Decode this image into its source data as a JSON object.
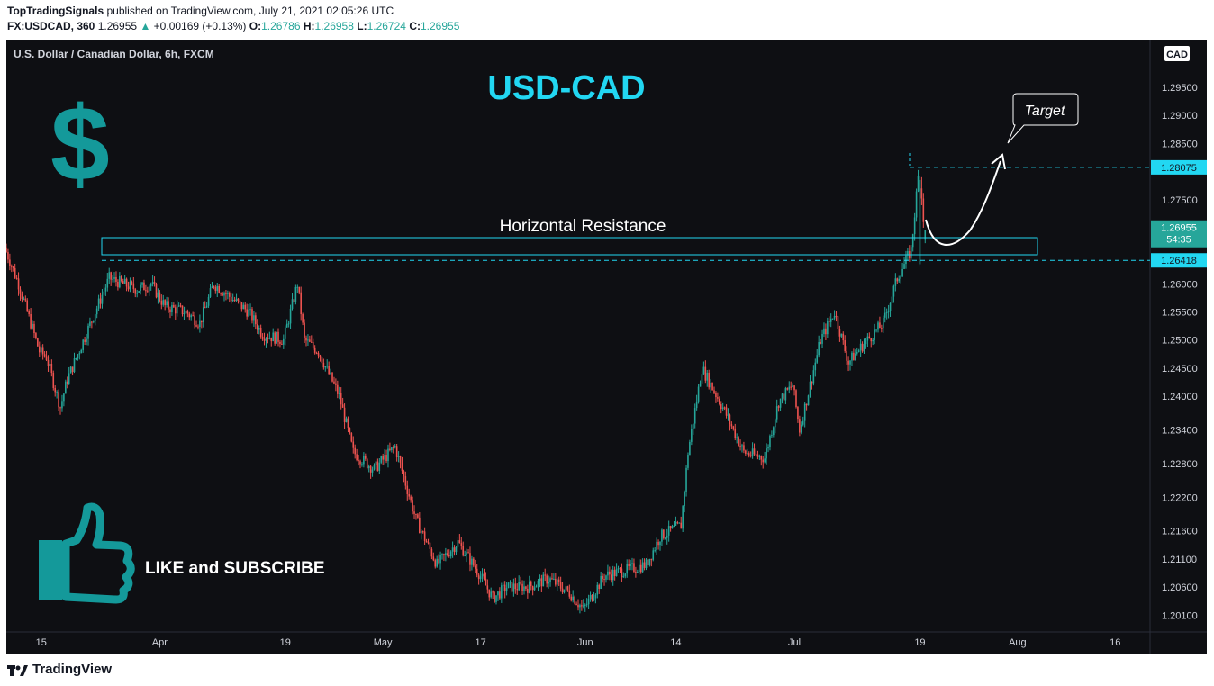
{
  "header": {
    "author": "TopTradingSignals",
    "published_text": "published on TradingView.com, July 21, 2021 02:05:26 UTC",
    "symbol": "FX:USDCAD, 360",
    "price": "1.26955",
    "arrow": "▲",
    "change": "+0.00169 (+0.13%)",
    "o_label": "O:",
    "o_value": "1.26786",
    "h_label": "H:",
    "h_value": "1.26958",
    "l_label": "L:",
    "l_value": "1.26724",
    "c_label": "C:",
    "c_value": "1.26955"
  },
  "chart_title": "U.S. Dollar / Canadian Dollar, 6h, FXCM",
  "overlay": {
    "big_title": "USD-CAD",
    "dollar_sign": "$",
    "resistance_label": "Horizontal Resistance",
    "target_label": "Target",
    "like_label": "LIKE and SUBSCRIBE"
  },
  "footer": {
    "brand": "TradingView"
  },
  "price_axis": {
    "currency_badge": "CAD",
    "current_price": "1.26955",
    "countdown": "54:35",
    "resistance_price": "1.26418",
    "target_price": "1.28075"
  },
  "colors": {
    "background": "#0e0f13",
    "up": "#26a69a",
    "down": "#ef5350",
    "cyan": "#22d7f2",
    "teal_icon": "#14999a"
  },
  "chart_data": {
    "type": "candlestick",
    "title": "U.S. Dollar / Canadian Dollar, 6h, FXCM",
    "ylim": [
      1.198,
      1.3035
    ],
    "y_ticks": [
      "1.29500",
      "1.29000",
      "1.28500",
      "1.27500",
      "1.26000",
      "1.25500",
      "1.25000",
      "1.24500",
      "1.24000",
      "1.23400",
      "1.22800",
      "1.22200",
      "1.21600",
      "1.21100",
      "1.20600",
      "1.20100"
    ],
    "x_ticks": [
      "15",
      "Apr",
      "19",
      "May",
      "17",
      "Jun",
      "14",
      "Jul",
      "19",
      "Aug",
      "16"
    ],
    "path_points": [
      [
        "2021-03-10",
        1.2665
      ],
      [
        "2021-03-12",
        1.26
      ],
      [
        "2021-03-15",
        1.248
      ],
      [
        "2021-03-16",
        1.247
      ],
      [
        "2021-03-18",
        1.238
      ],
      [
        "2021-03-19",
        1.243
      ],
      [
        "2021-03-22",
        1.252
      ],
      [
        "2021-03-25",
        1.261
      ],
      [
        "2021-03-29",
        1.259
      ],
      [
        "2021-03-31",
        1.26
      ],
      [
        "2021-04-02",
        1.256
      ],
      [
        "2021-04-05",
        1.255
      ],
      [
        "2021-04-07",
        1.253
      ],
      [
        "2021-04-09",
        1.26
      ],
      [
        "2021-04-12",
        1.257
      ],
      [
        "2021-04-14",
        1.255
      ],
      [
        "2021-04-16",
        1.251
      ],
      [
        "2021-04-19",
        1.25
      ],
      [
        "2021-04-21",
        1.26
      ],
      [
        "2021-04-22",
        1.25
      ],
      [
        "2021-04-24",
        1.248
      ],
      [
        "2021-04-27",
        1.24
      ],
      [
        "2021-04-29",
        1.23
      ],
      [
        "2021-05-02",
        1.227
      ],
      [
        "2021-05-05",
        1.231
      ],
      [
        "2021-05-08",
        1.218
      ],
      [
        "2021-05-11",
        1.21
      ],
      [
        "2021-05-14",
        1.214
      ],
      [
        "2021-05-17",
        1.2085
      ],
      [
        "2021-05-19",
        1.204
      ],
      [
        "2021-05-21",
        1.206
      ],
      [
        "2021-05-24",
        1.206
      ],
      [
        "2021-05-27",
        1.2075
      ],
      [
        "2021-05-30",
        1.205
      ],
      [
        "2021-06-01",
        1.202
      ],
      [
        "2021-06-04",
        1.208
      ],
      [
        "2021-06-07",
        1.209
      ],
      [
        "2021-06-10",
        1.21
      ],
      [
        "2021-06-12",
        1.215
      ],
      [
        "2021-06-15",
        1.217
      ],
      [
        "2021-06-16",
        1.23
      ],
      [
        "2021-06-18",
        1.245
      ],
      [
        "2021-06-21",
        1.238
      ],
      [
        "2021-06-24",
        1.23
      ],
      [
        "2021-06-27",
        1.229
      ],
      [
        "2021-06-29",
        1.239
      ],
      [
        "2021-07-01",
        1.242
      ],
      [
        "2021-07-02",
        1.234
      ],
      [
        "2021-07-05",
        1.25
      ],
      [
        "2021-07-07",
        1.255
      ],
      [
        "2021-07-09",
        1.246
      ],
      [
        "2021-07-11",
        1.249
      ],
      [
        "2021-07-14",
        1.253
      ],
      [
        "2021-07-16",
        1.261
      ],
      [
        "2021-07-18",
        1.266
      ],
      [
        "2021-07-19",
        1.279
      ],
      [
        "2021-07-20",
        1.275
      ],
      [
        "2021-07-21",
        1.269
      ]
    ],
    "last_candles": [
      {
        "date": "2021-07-19",
        "open": 1.2635,
        "high": 1.2807,
        "low": 1.263,
        "close": 1.2785
      },
      {
        "date": "2021-07-20",
        "open": 1.277,
        "high": 1.279,
        "low": 1.274,
        "close": 1.2752
      },
      {
        "date": "2021-07-20",
        "open": 1.2752,
        "high": 1.2762,
        "low": 1.27,
        "close": 1.271
      },
      {
        "date": "2021-07-21",
        "open": 1.26786,
        "high": 1.26958,
        "low": 1.26724,
        "close": 1.26955
      }
    ],
    "resistance_level": 1.26418,
    "target_level": 1.28075
  }
}
